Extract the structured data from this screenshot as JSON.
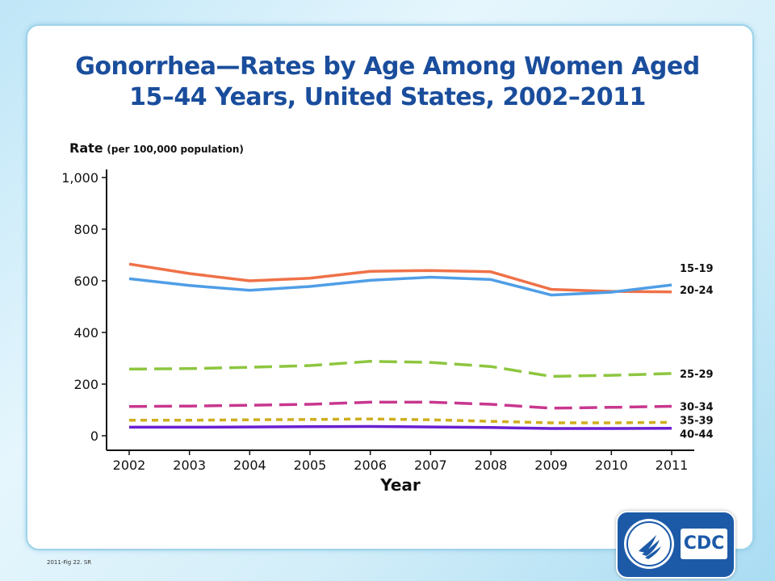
{
  "footnote": "2011-Fig 22. SR",
  "logo": {
    "text": "CDC"
  },
  "chart_data": {
    "type": "line",
    "title_line1": "Gonorrhea—Rates by Age Among Women Aged",
    "title_line2": "15–44 Years, United States, 2002–2011",
    "ylabel": "Rate",
    "ylabel_unit": "(per 100,000 population)",
    "xlabel": "Year",
    "x": [
      "2002",
      "2003",
      "2004",
      "2005",
      "2006",
      "2007",
      "2008",
      "2009",
      "2010",
      "2011"
    ],
    "ylim": [
      0,
      1000
    ],
    "yticks": [
      0,
      200,
      400,
      600,
      800,
      1000
    ],
    "ytick_labels": [
      "0",
      "200",
      "400",
      "600",
      "800",
      "1,000"
    ],
    "grid": false,
    "series": [
      {
        "name": "20-24",
        "color": "#ef7148",
        "dash": "solid",
        "values": [
          665,
          628,
          600,
          610,
          637,
          640,
          635,
          567,
          559,
          557
        ]
      },
      {
        "name": "15-19",
        "color": "#4f9ee6",
        "dash": "solid",
        "values": [
          608,
          582,
          563,
          578,
          602,
          614,
          605,
          545,
          556,
          584
        ]
      },
      {
        "name": "25-29",
        "color": "#8dc63f",
        "dash": "longdash",
        "values": [
          258,
          260,
          265,
          272,
          288,
          284,
          268,
          230,
          234,
          241
        ]
      },
      {
        "name": "30-34",
        "color": "#c8378e",
        "dash": "longdash",
        "values": [
          113,
          115,
          118,
          122,
          130,
          130,
          122,
          107,
          110,
          114
        ]
      },
      {
        "name": "35-39",
        "color": "#cfae1f",
        "dash": "shortdash",
        "values": [
          60,
          60,
          62,
          63,
          65,
          62,
          56,
          50,
          50,
          52
        ]
      },
      {
        "name": "40-44",
        "color": "#6a1fd1",
        "dash": "solid",
        "values": [
          33,
          33,
          34,
          35,
          36,
          34,
          32,
          28,
          28,
          29
        ]
      }
    ]
  }
}
